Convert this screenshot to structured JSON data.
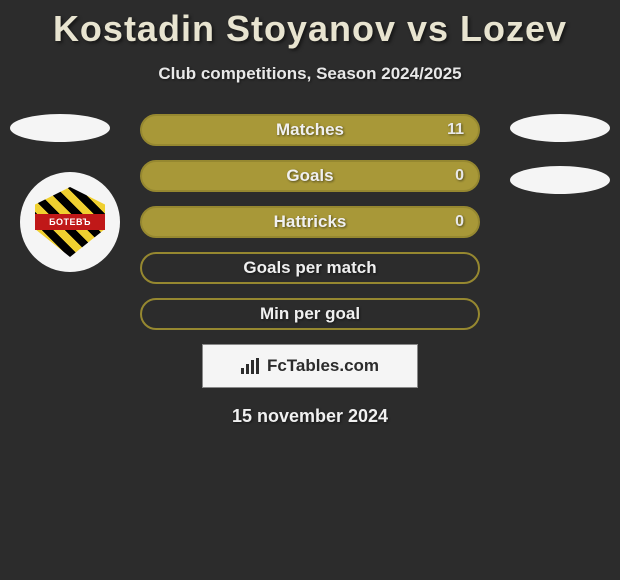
{
  "title": "Kostadin Stoyanov vs Lozev",
  "subtitle": "Club competitions, Season 2024/2025",
  "logo": {
    "band_text": "БОТЕВЪ",
    "stripe_color1": "#f0d030",
    "stripe_color2": "#000000",
    "band_color": "#c01818"
  },
  "stats": [
    {
      "label": "Matches",
      "value": "11",
      "filled": true
    },
    {
      "label": "Goals",
      "value": "0",
      "filled": true
    },
    {
      "label": "Hattricks",
      "value": "0",
      "filled": true
    },
    {
      "label": "Goals per match",
      "value": "",
      "filled": false
    },
    {
      "label": "Min per goal",
      "value": "",
      "filled": false
    }
  ],
  "brand": "FcTables.com",
  "date": "15 november 2024",
  "colors": {
    "bg": "#2c2c2c",
    "title": "#e8e4d0",
    "bar_fill": "#a89838",
    "bar_border": "#968830",
    "text_light": "#f0f0f0"
  }
}
